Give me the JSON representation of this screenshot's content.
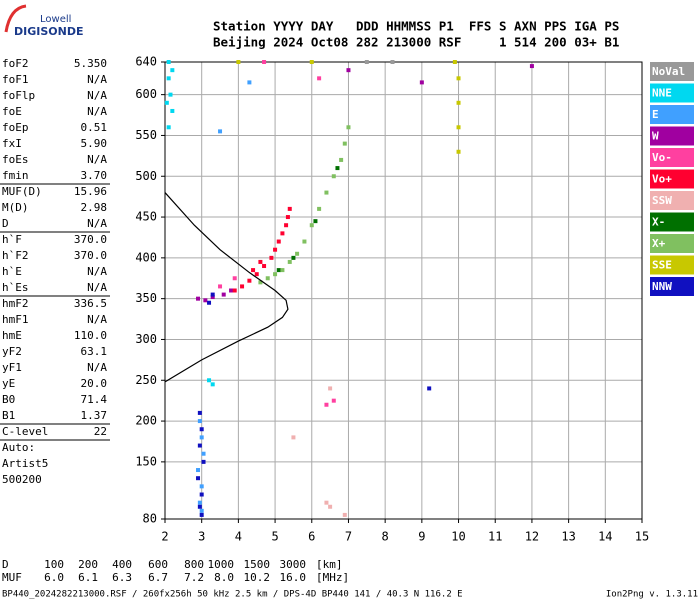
{
  "logo": {
    "top": "Lowell",
    "bottom": "DIGISONDE"
  },
  "header": {
    "lines": [
      "Station YYYY DAY   DDD HHMMSS P1  FFS S AXN PPS IGA PS",
      "Beijing 2024 Oct08 282 213000 RSF     1 514 200 03+ B1"
    ]
  },
  "parameters": {
    "groups": [
      [
        [
          "foF2",
          "5.350"
        ],
        [
          "foF1",
          "N/A"
        ],
        [
          "foFlp",
          "N/A"
        ],
        [
          "foE",
          "N/A"
        ],
        [
          "foEp",
          "0.51"
        ],
        [
          "fxI",
          "5.90"
        ],
        [
          "foEs",
          "N/A"
        ],
        [
          "fmin",
          "3.70"
        ]
      ],
      [
        [
          "MUF(D)",
          "15.96"
        ],
        [
          "M(D)",
          "2.98"
        ],
        [
          "D",
          "N/A"
        ]
      ],
      [
        [
          "h`F",
          "370.0"
        ],
        [
          "h`F2",
          "370.0"
        ],
        [
          "h`E",
          "N/A"
        ],
        [
          "h`Es",
          "N/A"
        ]
      ],
      [
        [
          "hmF2",
          "336.5"
        ],
        [
          "hmF1",
          "N/A"
        ],
        [
          "hmE",
          "110.0"
        ],
        [
          "yF2",
          "63.1"
        ],
        [
          "yF1",
          "N/A"
        ],
        [
          "yE",
          "20.0"
        ],
        [
          "B0",
          "71.4"
        ],
        [
          "B1",
          "1.37"
        ]
      ],
      [
        [
          "C-level",
          "22"
        ]
      ]
    ],
    "notes": [
      "Auto:",
      "Artist5",
      "500200"
    ]
  },
  "muf_table": {
    "rows": [
      [
        "D",
        "100",
        "200",
        "400",
        "600",
        "800",
        "1000",
        "1500",
        "3000",
        "[km]"
      ],
      [
        "MUF",
        "6.0",
        "6.1",
        "6.3",
        "6.7",
        "7.2",
        "8.0",
        "10.2",
        "16.0",
        "[MHz]"
      ]
    ]
  },
  "footer": {
    "file": "BP440_2024282213000.RSF / 260fx256h 50 kHz 2.5 km / DPS-4D BP440 141 / 40.3 N 116.2 E",
    "version": "Ion2Png v. 1.3.11"
  },
  "chart_data": {
    "type": "scatter",
    "xlim": [
      2,
      15
    ],
    "xticks": [
      2,
      3,
      4,
      5,
      6,
      7,
      8,
      9,
      10,
      11,
      12,
      13,
      14,
      15
    ],
    "ylim": [
      80,
      640
    ],
    "yticks": [
      80,
      150,
      200,
      250,
      300,
      350,
      400,
      450,
      500,
      550,
      600,
      640
    ],
    "grid": true,
    "series": [
      {
        "name": "NoVal",
        "color": "#999999",
        "x": [
          7.5,
          8.2
        ],
        "y": [
          640,
          640
        ]
      },
      {
        "name": "NNE",
        "color": "#00d8f0",
        "x": [
          2.1,
          2.1,
          2.15,
          2.2,
          2.1,
          2.05,
          2.2,
          3.3,
          3.2
        ],
        "y": [
          640,
          620,
          600,
          580,
          560,
          590,
          630,
          245,
          250
        ]
      },
      {
        "name": "E",
        "color": "#40a0ff",
        "x": [
          2.95,
          3.0,
          3.05,
          2.9,
          3.0,
          2.95,
          3.0,
          3.5,
          4.3
        ],
        "y": [
          200,
          180,
          160,
          140,
          120,
          100,
          90,
          555,
          615
        ]
      },
      {
        "name": "W",
        "color": "#a000a0",
        "x": [
          2.9,
          3.1,
          3.3,
          3.6,
          3.8,
          9.0,
          12.0,
          7.0
        ],
        "y": [
          350,
          348,
          352,
          355,
          360,
          615,
          635,
          630
        ]
      },
      {
        "name": "Vo-",
        "color": "#ff40a0",
        "x": [
          3.5,
          3.9,
          6.6,
          6.4,
          4.7,
          6.2
        ],
        "y": [
          365,
          375,
          225,
          220,
          640,
          620
        ]
      },
      {
        "name": "Vo+",
        "color": "#ff0030",
        "x": [
          3.9,
          4.1,
          4.3,
          4.4,
          4.5,
          4.6,
          4.7,
          4.9,
          5.0,
          5.1,
          5.2,
          5.3,
          5.35,
          5.4
        ],
        "y": [
          360,
          365,
          372,
          385,
          380,
          395,
          390,
          400,
          410,
          420,
          430,
          440,
          450,
          460
        ]
      },
      {
        "name": "SSW",
        "color": "#f0b0b0",
        "x": [
          6.4,
          6.5,
          6.9,
          6.5,
          5.5
        ],
        "y": [
          100,
          95,
          85,
          240,
          180
        ]
      },
      {
        "name": "X-",
        "color": "#007000",
        "x": [
          5.1,
          5.5,
          6.1,
          6.7
        ],
        "y": [
          385,
          400,
          445,
          510
        ]
      },
      {
        "name": "X+",
        "color": "#80c060",
        "x": [
          4.6,
          4.8,
          5.0,
          5.2,
          5.4,
          5.6,
          5.8,
          6.0,
          6.2,
          6.4,
          6.6,
          6.8,
          6.9,
          7.0
        ],
        "y": [
          370,
          375,
          380,
          385,
          395,
          405,
          420,
          440,
          460,
          480,
          500,
          520,
          540,
          560
        ]
      },
      {
        "name": "SSE",
        "color": "#c8c800",
        "x": [
          10.0,
          10.0,
          10.0,
          10.0,
          6.0,
          4.0,
          9.9
        ],
        "y": [
          530,
          560,
          590,
          620,
          640,
          640,
          640
        ]
      },
      {
        "name": "NNW",
        "color": "#1010c0",
        "x": [
          2.95,
          3.0,
          2.95,
          3.05,
          2.9,
          3.0,
          2.95,
          3.0,
          9.2,
          3.3,
          3.2
        ],
        "y": [
          210,
          190,
          170,
          150,
          130,
          110,
          95,
          85,
          240,
          355,
          345
        ]
      }
    ],
    "profile": {
      "color": "#000000",
      "x": [
        2.0,
        3.0,
        4.0,
        4.8,
        5.2,
        5.35,
        5.3,
        5.0,
        4.3,
        3.5,
        2.8,
        2.0
      ],
      "y": [
        248,
        275,
        298,
        315,
        327,
        337,
        348,
        360,
        382,
        410,
        440,
        480
      ]
    }
  }
}
